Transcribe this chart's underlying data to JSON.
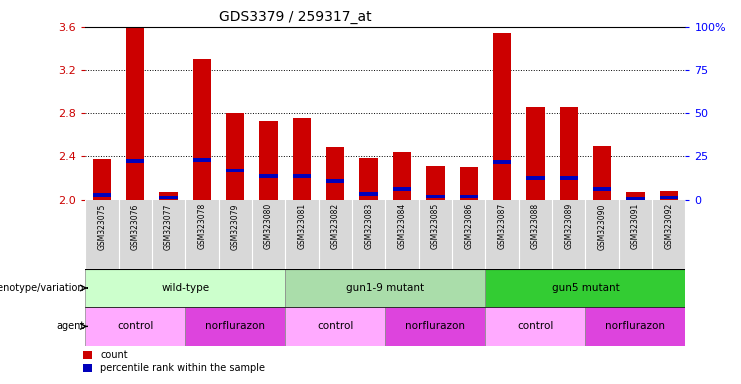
{
  "title": "GDS3379 / 259317_at",
  "samples": [
    "GSM323075",
    "GSM323076",
    "GSM323077",
    "GSM323078",
    "GSM323079",
    "GSM323080",
    "GSM323081",
    "GSM323082",
    "GSM323083",
    "GSM323084",
    "GSM323085",
    "GSM323086",
    "GSM323087",
    "GSM323088",
    "GSM323089",
    "GSM323090",
    "GSM323091",
    "GSM323092"
  ],
  "counts": [
    2.38,
    3.6,
    2.07,
    3.3,
    2.8,
    2.73,
    2.76,
    2.49,
    2.39,
    2.44,
    2.31,
    2.3,
    3.54,
    2.86,
    2.86,
    2.5,
    2.07,
    2.08
  ],
  "percentile_rank": [
    2.04,
    2.36,
    2.02,
    2.37,
    2.27,
    2.22,
    2.22,
    2.17,
    2.05,
    2.1,
    2.03,
    2.03,
    2.35,
    2.2,
    2.2,
    2.1,
    2.01,
    2.02
  ],
  "ylim": [
    2.0,
    3.6
  ],
  "yticks_left": [
    2.0,
    2.4,
    2.8,
    3.2,
    3.6
  ],
  "yticks_right": [
    0,
    25,
    50,
    75,
    100
  ],
  "ytick_right_labels": [
    "0",
    "25",
    "50",
    "75",
    "100%"
  ],
  "bar_color": "#cc0000",
  "blue_color": "#0000bb",
  "plot_bg": "#ffffff",
  "xtick_bg": "#d8d8d8",
  "geno_groups": [
    {
      "label": "wild-type",
      "start": 0,
      "end": 5,
      "color": "#ccffcc"
    },
    {
      "label": "gun1-9 mutant",
      "start": 6,
      "end": 11,
      "color": "#aaddaa"
    },
    {
      "label": "gun5 mutant",
      "start": 12,
      "end": 17,
      "color": "#33cc33"
    }
  ],
  "agent_groups": [
    {
      "label": "control",
      "start": 0,
      "end": 2,
      "color": "#ffaaff"
    },
    {
      "label": "norflurazon",
      "start": 3,
      "end": 5,
      "color": "#dd44dd"
    },
    {
      "label": "control",
      "start": 6,
      "end": 8,
      "color": "#ffaaff"
    },
    {
      "label": "norflurazon",
      "start": 9,
      "end": 11,
      "color": "#dd44dd"
    },
    {
      "label": "control",
      "start": 12,
      "end": 14,
      "color": "#ffaaff"
    },
    {
      "label": "norflurazon",
      "start": 15,
      "end": 17,
      "color": "#dd44dd"
    }
  ]
}
